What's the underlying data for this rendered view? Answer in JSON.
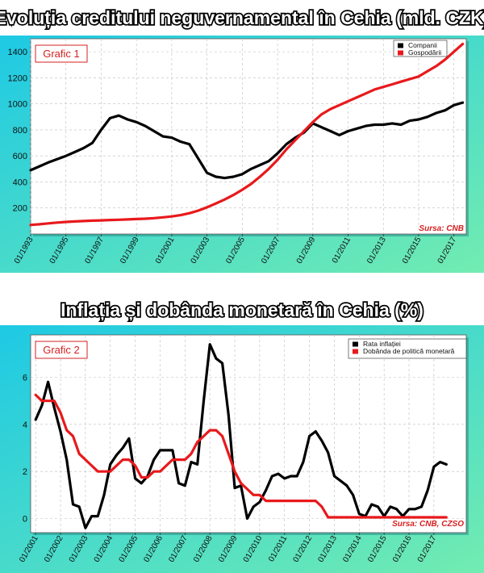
{
  "background": {
    "gradient_from": "#1ec9e4",
    "gradient_to": "#72ecb1"
  },
  "chart_data": [
    {
      "type": "line",
      "title": "Evoluția creditului neguvernamental în Cehia (mld. CZK)",
      "badge": "Grafic 1",
      "source": "Sursa: CNB",
      "legend_position": "top-right",
      "grid": true,
      "ylim": [
        0,
        1500
      ],
      "yticks": [
        200,
        400,
        600,
        800,
        1000,
        1200,
        1400
      ],
      "xlim": [
        1993.0,
        2017.7
      ],
      "xtick_labels": [
        "01/1993",
        "01/1995",
        "01/1997",
        "01/1999",
        "01/2001",
        "01/2003",
        "01/2005",
        "01/2007",
        "01/2009",
        "01/2011",
        "01/2013",
        "01/2015",
        "01/2017"
      ],
      "xtick_positions": [
        1993,
        1995,
        1997,
        1999,
        2001,
        2003,
        2005,
        2007,
        2009,
        2011,
        2013,
        2015,
        2017
      ],
      "series": [
        {
          "name": "Companii",
          "color": "#000000",
          "x": [
            1993.0,
            1993.5,
            1994.0,
            1994.5,
            1995.0,
            1995.5,
            1996.0,
            1996.5,
            1997.0,
            1997.5,
            1998.0,
            1998.5,
            1999.0,
            1999.5,
            2000.0,
            2000.5,
            2001.0,
            2001.5,
            2002.0,
            2002.5,
            2003.0,
            2003.5,
            2004.0,
            2004.5,
            2005.0,
            2005.5,
            2006.0,
            2006.5,
            2007.0,
            2007.5,
            2008.0,
            2008.5,
            2009.0,
            2009.5,
            2010.0,
            2010.5,
            2011.0,
            2011.5,
            2012.0,
            2012.5,
            2013.0,
            2013.5,
            2014.0,
            2014.5,
            2015.0,
            2015.5,
            2016.0,
            2016.5,
            2017.0,
            2017.5
          ],
          "y": [
            490,
            520,
            550,
            575,
            600,
            630,
            660,
            700,
            800,
            890,
            910,
            880,
            860,
            830,
            790,
            750,
            740,
            710,
            690,
            580,
            470,
            440,
            430,
            440,
            460,
            500,
            530,
            560,
            620,
            690,
            740,
            780,
            850,
            820,
            790,
            760,
            790,
            810,
            830,
            840,
            840,
            850,
            840,
            870,
            880,
            900,
            930,
            950,
            990,
            1010
          ]
        },
        {
          "name": "Gospodării",
          "color": "#e8191c",
          "x": [
            1993.0,
            1993.5,
            1994.0,
            1994.5,
            1995.0,
            1995.5,
            1996.0,
            1996.5,
            1997.0,
            1997.5,
            1998.0,
            1998.5,
            1999.0,
            1999.5,
            2000.0,
            2000.5,
            2001.0,
            2001.5,
            2002.0,
            2002.5,
            2003.0,
            2003.5,
            2004.0,
            2004.5,
            2005.0,
            2005.5,
            2006.0,
            2006.5,
            2007.0,
            2007.5,
            2008.0,
            2008.5,
            2009.0,
            2009.5,
            2010.0,
            2010.5,
            2011.0,
            2011.5,
            2012.0,
            2012.5,
            2013.0,
            2013.5,
            2014.0,
            2014.5,
            2015.0,
            2015.5,
            2016.0,
            2016.5,
            2017.0,
            2017.5
          ],
          "y": [
            70,
            75,
            82,
            88,
            93,
            97,
            100,
            103,
            105,
            108,
            110,
            112,
            115,
            118,
            122,
            128,
            135,
            145,
            160,
            180,
            205,
            235,
            265,
            300,
            340,
            385,
            440,
            500,
            570,
            650,
            720,
            790,
            860,
            920,
            960,
            990,
            1020,
            1050,
            1080,
            1110,
            1130,
            1150,
            1170,
            1190,
            1210,
            1250,
            1290,
            1340,
            1400,
            1460
          ]
        }
      ]
    },
    {
      "type": "line",
      "title": "Inflația și dobânda monetară în Cehia (%)",
      "badge": "Grafic 2",
      "source": "Sursa: CNB, CZSO",
      "legend_position": "top-right",
      "grid": true,
      "ylim": [
        -0.6,
        7.8
      ],
      "yticks": [
        0,
        2,
        4,
        6
      ],
      "xlim": [
        2000.8,
        2018.3
      ],
      "xtick_labels": [
        "01/2001",
        "01/2002",
        "01/2003",
        "01/2004",
        "01/2005",
        "01/2006",
        "01/2007",
        "01/2008",
        "01/2009",
        "01/2010",
        "01/2011",
        "01/2012",
        "01/2013",
        "01/2014",
        "01/2015",
        "01/2016",
        "01/2017"
      ],
      "xtick_positions": [
        2001,
        2002,
        2003,
        2004,
        2005,
        2006,
        2007,
        2008,
        2009,
        2010,
        2011,
        2012,
        2013,
        2014,
        2015,
        2016,
        2017
      ],
      "series": [
        {
          "name": "Rata inflației",
          "color": "#000000",
          "x": [
            2001.0,
            2001.25,
            2001.5,
            2001.75,
            2002.0,
            2002.25,
            2002.5,
            2002.75,
            2003.0,
            2003.25,
            2003.5,
            2003.75,
            2004.0,
            2004.25,
            2004.5,
            2004.75,
            2005.0,
            2005.25,
            2005.5,
            2005.75,
            2006.0,
            2006.25,
            2006.5,
            2006.75,
            2007.0,
            2007.25,
            2007.5,
            2007.75,
            2008.0,
            2008.25,
            2008.5,
            2008.75,
            2009.0,
            2009.25,
            2009.5,
            2009.75,
            2010.0,
            2010.25,
            2010.5,
            2010.75,
            2011.0,
            2011.25,
            2011.5,
            2011.75,
            2012.0,
            2012.25,
            2012.5,
            2012.75,
            2013.0,
            2013.25,
            2013.5,
            2013.75,
            2014.0,
            2014.25,
            2014.5,
            2014.75,
            2015.0,
            2015.25,
            2015.5,
            2015.75,
            2016.0,
            2016.25,
            2016.5,
            2016.75,
            2017.0,
            2017.25,
            2017.5
          ],
          "y": [
            4.2,
            4.8,
            5.8,
            4.7,
            3.7,
            2.5,
            0.6,
            0.5,
            -0.4,
            0.1,
            0.1,
            1.0,
            2.3,
            2.7,
            3.0,
            3.4,
            1.7,
            1.5,
            1.8,
            2.5,
            2.9,
            2.9,
            2.9,
            1.5,
            1.4,
            2.4,
            2.3,
            5.0,
            7.4,
            6.8,
            6.6,
            4.4,
            1.3,
            1.4,
            0.0,
            0.5,
            0.7,
            1.2,
            1.8,
            1.9,
            1.7,
            1.8,
            1.8,
            2.4,
            3.5,
            3.7,
            3.3,
            2.8,
            1.8,
            1.6,
            1.4,
            1.0,
            0.2,
            0.1,
            0.6,
            0.5,
            0.1,
            0.5,
            0.4,
            0.1,
            0.4,
            0.4,
            0.5,
            1.2,
            2.2,
            2.4,
            2.3
          ]
        },
        {
          "name": "Dobânda de politică monetară",
          "color": "#e8191c",
          "x": [
            2001.0,
            2001.25,
            2001.5,
            2001.75,
            2002.0,
            2002.25,
            2002.5,
            2002.75,
            2003.0,
            2003.25,
            2003.5,
            2003.75,
            2004.0,
            2004.25,
            2004.5,
            2004.75,
            2005.0,
            2005.25,
            2005.5,
            2005.75,
            2006.0,
            2006.25,
            2006.5,
            2006.75,
            2007.0,
            2007.25,
            2007.5,
            2007.75,
            2008.0,
            2008.25,
            2008.5,
            2008.75,
            2009.0,
            2009.25,
            2009.5,
            2009.75,
            2010.0,
            2010.25,
            2010.5,
            2010.75,
            2011.0,
            2011.25,
            2011.5,
            2011.75,
            2012.0,
            2012.25,
            2012.5,
            2012.75,
            2013.0,
            2013.25,
            2013.5,
            2013.75,
            2014.0,
            2014.25,
            2014.5,
            2014.75,
            2015.0,
            2015.25,
            2015.5,
            2015.75,
            2016.0,
            2016.25,
            2016.5,
            2016.75,
            2017.0,
            2017.25,
            2017.5
          ],
          "y": [
            5.25,
            5.0,
            5.0,
            5.0,
            4.5,
            3.75,
            3.5,
            2.75,
            2.5,
            2.25,
            2.0,
            2.0,
            2.0,
            2.25,
            2.5,
            2.5,
            2.25,
            1.75,
            1.75,
            2.0,
            2.0,
            2.25,
            2.5,
            2.5,
            2.5,
            2.75,
            3.25,
            3.5,
            3.75,
            3.75,
            3.5,
            2.75,
            2.0,
            1.5,
            1.25,
            1.0,
            1.0,
            0.75,
            0.75,
            0.75,
            0.75,
            0.75,
            0.75,
            0.75,
            0.75,
            0.75,
            0.5,
            0.05,
            0.05,
            0.05,
            0.05,
            0.05,
            0.05,
            0.05,
            0.05,
            0.05,
            0.05,
            0.05,
            0.05,
            0.05,
            0.05,
            0.05,
            0.05,
            0.05,
            0.05,
            0.05,
            0.05
          ]
        }
      ]
    }
  ]
}
